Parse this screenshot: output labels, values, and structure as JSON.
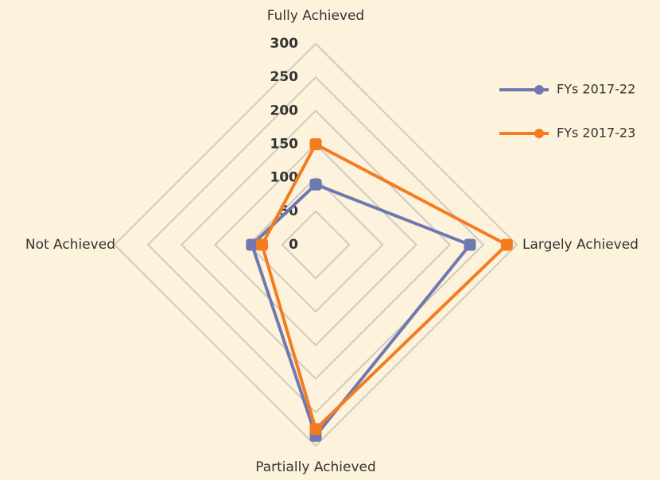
{
  "chart_data": {
    "type": "radar",
    "categories": [
      "Fully Achieved",
      "Largely Achieved",
      "Partially Achieved",
      "Not Achieved"
    ],
    "series": [
      {
        "name": "FYs 2017-22",
        "color": "#7078b2",
        "values": [
          90,
          230,
          285,
          95
        ]
      },
      {
        "name": "FYs 2017-23",
        "color": "#f47c20",
        "values": [
          150,
          285,
          275,
          80
        ]
      }
    ],
    "rlim": [
      0,
      300
    ],
    "rticks": [
      0,
      50,
      100,
      150,
      200,
      250,
      300
    ],
    "grid": true,
    "legend": "right"
  }
}
